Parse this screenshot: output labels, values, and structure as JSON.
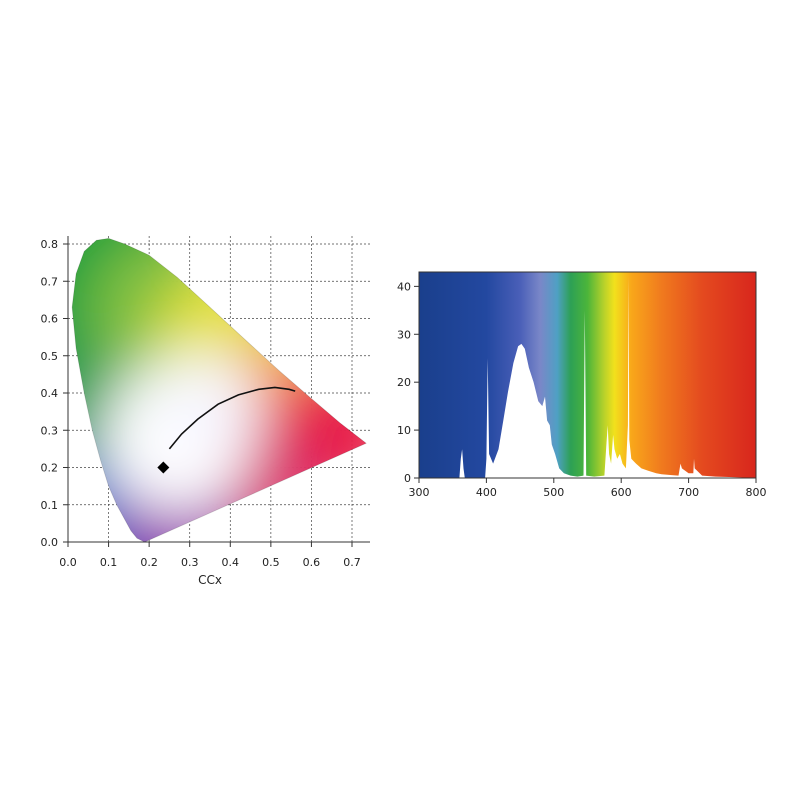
{
  "chart_data": [
    {
      "type": "scatter",
      "title": "",
      "xlabel": "CCx",
      "ylabel": "",
      "xlim": [
        0.0,
        0.74
      ],
      "ylim": [
        0.0,
        0.82
      ],
      "x_ticks": [
        "0.0",
        "0.1",
        "0.2",
        "0.3",
        "0.4",
        "0.5",
        "0.6",
        "0.7"
      ],
      "y_ticks": [
        "0.0",
        "0.1",
        "0.2",
        "0.3",
        "0.4",
        "0.5",
        "0.6",
        "0.7",
        "0.8"
      ],
      "grid": true,
      "gamut_boundary": [
        [
          0.189,
          0.0
        ],
        [
          0.17,
          0.01
        ],
        [
          0.155,
          0.03
        ],
        [
          0.14,
          0.06
        ],
        [
          0.12,
          0.1
        ],
        [
          0.1,
          0.15
        ],
        [
          0.08,
          0.22
        ],
        [
          0.06,
          0.3
        ],
        [
          0.04,
          0.4
        ],
        [
          0.02,
          0.52
        ],
        [
          0.01,
          0.63
        ],
        [
          0.02,
          0.72
        ],
        [
          0.04,
          0.78
        ],
        [
          0.07,
          0.81
        ],
        [
          0.1,
          0.815
        ],
        [
          0.14,
          0.8
        ],
        [
          0.2,
          0.77
        ],
        [
          0.27,
          0.71
        ],
        [
          0.35,
          0.63
        ],
        [
          0.44,
          0.54
        ],
        [
          0.52,
          0.46
        ],
        [
          0.6,
          0.385
        ],
        [
          0.67,
          0.32
        ],
        [
          0.735,
          0.265
        ],
        [
          0.189,
          0.0
        ]
      ],
      "planckian_locus": [
        [
          0.25,
          0.25
        ],
        [
          0.28,
          0.29
        ],
        [
          0.32,
          0.33
        ],
        [
          0.37,
          0.37
        ],
        [
          0.42,
          0.395
        ],
        [
          0.47,
          0.41
        ],
        [
          0.51,
          0.415
        ],
        [
          0.545,
          0.41
        ],
        [
          0.56,
          0.405
        ]
      ],
      "marker": {
        "x": 0.235,
        "y": 0.2,
        "shape": "diamond",
        "color": "#000000"
      }
    },
    {
      "type": "area",
      "title": "",
      "xlabel": "",
      "ylabel": "",
      "xlim": [
        300,
        800
      ],
      "ylim": [
        0,
        43
      ],
      "x_ticks": [
        "300",
        "400",
        "500",
        "600",
        "700",
        "800"
      ],
      "y_ticks": [
        "0",
        "10",
        "20",
        "30",
        "40"
      ],
      "grid": false,
      "spectrum": [
        [
          300,
          0
        ],
        [
          360,
          0
        ],
        [
          362,
          4
        ],
        [
          364,
          6
        ],
        [
          366,
          2
        ],
        [
          368,
          0
        ],
        [
          398,
          0
        ],
        [
          400,
          4
        ],
        [
          402,
          25
        ],
        [
          404,
          5
        ],
        [
          410,
          3
        ],
        [
          418,
          6
        ],
        [
          425,
          12
        ],
        [
          432,
          18
        ],
        [
          440,
          24
        ],
        [
          447,
          27.5
        ],
        [
          452,
          28
        ],
        [
          457,
          27
        ],
        [
          463,
          23
        ],
        [
          470,
          20
        ],
        [
          477,
          16
        ],
        [
          483,
          15
        ],
        [
          487,
          17
        ],
        [
          490,
          12
        ],
        [
          494,
          11
        ],
        [
          497,
          7
        ],
        [
          502,
          5
        ],
        [
          508,
          2
        ],
        [
          515,
          1
        ],
        [
          525,
          0.5
        ],
        [
          535,
          0.3
        ],
        [
          544,
          0.5
        ],
        [
          546,
          35
        ],
        [
          548,
          0.5
        ],
        [
          560,
          0.3
        ],
        [
          575,
          0.5
        ],
        [
          578,
          7
        ],
        [
          580,
          11
        ],
        [
          582,
          5
        ],
        [
          585,
          3
        ],
        [
          588,
          9
        ],
        [
          590,
          6
        ],
        [
          594,
          4
        ],
        [
          598,
          5
        ],
        [
          602,
          3
        ],
        [
          607,
          2
        ],
        [
          610,
          11
        ],
        [
          611,
          42
        ],
        [
          612,
          8
        ],
        [
          615,
          4
        ],
        [
          622,
          3
        ],
        [
          630,
          2
        ],
        [
          640,
          1.5
        ],
        [
          652,
          1
        ],
        [
          660,
          0.8
        ],
        [
          675,
          0.6
        ],
        [
          685,
          0.5
        ],
        [
          688,
          3
        ],
        [
          690,
          2
        ],
        [
          700,
          1
        ],
        [
          707,
          1
        ],
        [
          708,
          4
        ],
        [
          709,
          2
        ],
        [
          720,
          0.5
        ],
        [
          740,
          0.3
        ],
        [
          760,
          0.2
        ],
        [
          780,
          0.1
        ],
        [
          800,
          0
        ]
      ]
    }
  ]
}
